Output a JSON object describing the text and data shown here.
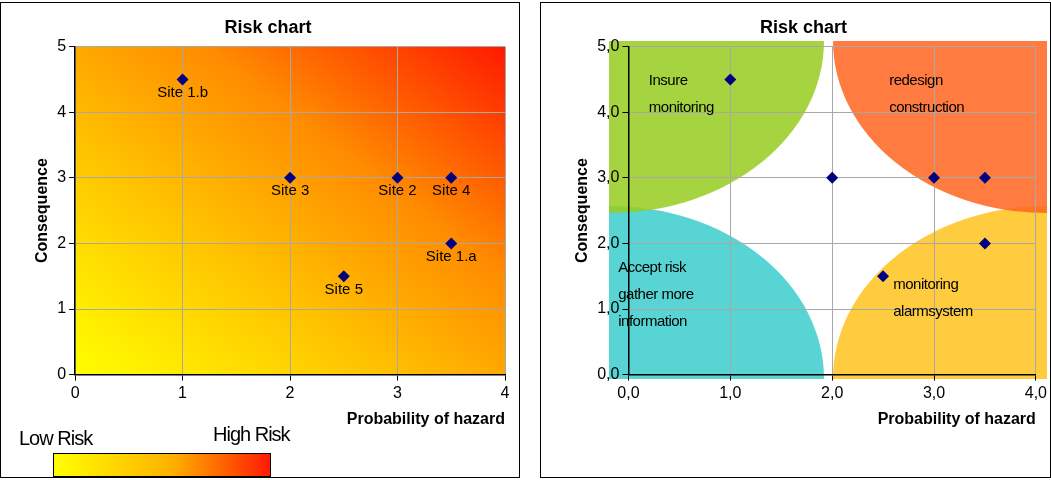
{
  "chart_data": [
    {
      "type": "scatter",
      "title": "Risk chart",
      "xlabel": "Probability of hazard",
      "ylabel": "Consequence",
      "x": [
        1,
        2,
        3,
        3.5,
        3.5,
        2.5
      ],
      "series": [
        {
          "color": "#000080",
          "values": [
            4.5,
            3,
            3,
            3,
            2,
            1.5
          ]
        }
      ],
      "xlim": [
        0,
        4
      ],
      "xticks": [
        0,
        1,
        2,
        3,
        4
      ],
      "ylim": [
        0,
        5
      ],
      "yticks": [
        0,
        1,
        2,
        3,
        4,
        5
      ],
      "grid": true,
      "marker": "diamond",
      "annotations": [
        {
          "text": "Site 1.b",
          "x": 1,
          "y": 4.5
        },
        {
          "text": "Site 3",
          "x": 2,
          "y": 3
        },
        {
          "text": "Site 2",
          "x": 3,
          "y": 3
        },
        {
          "text": "Site 4",
          "x": 3.5,
          "y": 3
        },
        {
          "text": "Site 1.a",
          "x": 3.5,
          "y": 2
        },
        {
          "text": "Site 5",
          "x": 2.5,
          "y": 1.5
        },
        "Low Risk",
        "High Risk"
      ]
    },
    {
      "type": "scatter",
      "title": "Risk chart",
      "xlabel": "Probability of hazard",
      "ylabel": "Consequence",
      "x": [
        1,
        2,
        3,
        3.5,
        3.5,
        2.5
      ],
      "series": [
        {
          "color": "#000080",
          "values": [
            4.5,
            3,
            3,
            3,
            2,
            1.5
          ]
        }
      ],
      "xlim": [
        0,
        4
      ],
      "xticks": [
        {
          "value": 0,
          "label": "0,0"
        },
        {
          "value": 1,
          "label": "1,0"
        },
        {
          "value": 2,
          "label": "2,0"
        },
        {
          "value": 3,
          "label": "3,0"
        },
        {
          "value": 4,
          "label": "4,0"
        }
      ],
      "ylim": [
        0,
        5
      ],
      "yticks": [
        {
          "value": 0,
          "label": "0,0"
        },
        {
          "value": 1,
          "label": "1,0"
        },
        {
          "value": 2,
          "label": "2,0"
        },
        {
          "value": 3,
          "label": "3,0"
        },
        {
          "value": 4,
          "label": "4,0"
        },
        {
          "value": 5,
          "label": "5,0"
        }
      ],
      "grid": true,
      "marker": "diamond",
      "annotations": [
        "Insure\nmonitoring",
        "redesign\nconstruction",
        "Accept risk\ngather more\ninformation",
        "monitoring\nalarmsystem"
      ]
    }
  ]
}
